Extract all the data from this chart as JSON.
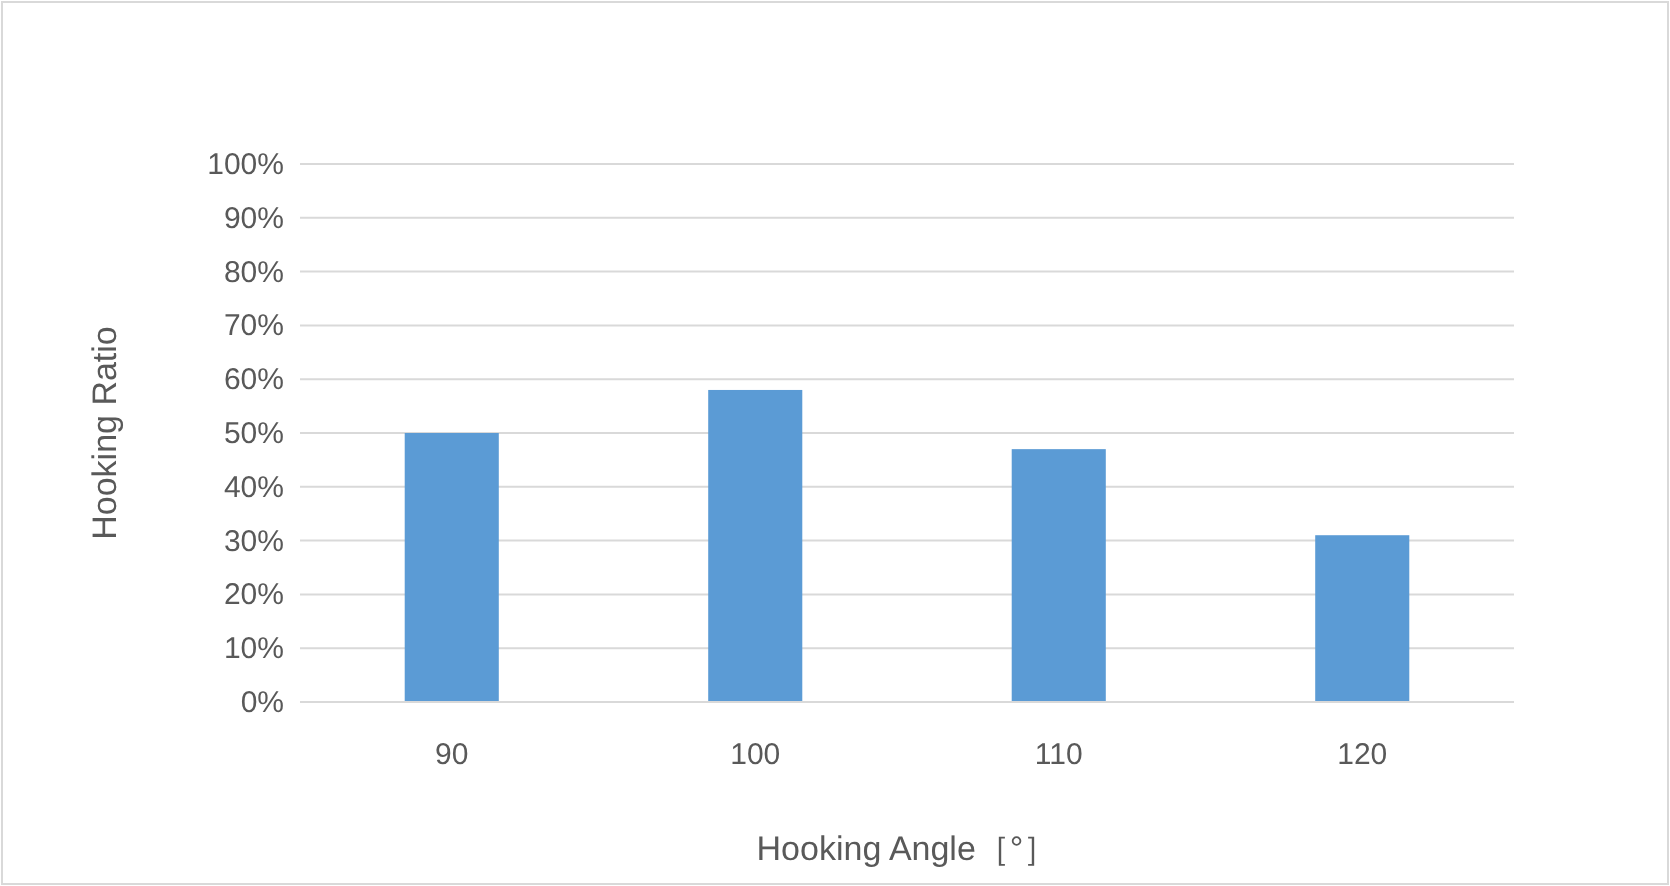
{
  "chart_data": {
    "type": "bar",
    "xlabel": "Hooking Angle［°］",
    "ylabel": "Hooking Ratio",
    "categories": [
      "90",
      "100",
      "110",
      "120"
    ],
    "values": [
      50,
      58,
      47,
      31
    ],
    "color": "#5b9bd5",
    "ylim": [
      0,
      100
    ],
    "yticks": [
      {
        "value": 0,
        "label": "0%"
      },
      {
        "value": 10,
        "label": "10%"
      },
      {
        "value": 20,
        "label": "20%"
      },
      {
        "value": 30,
        "label": "30%"
      },
      {
        "value": 40,
        "label": "40%"
      },
      {
        "value": 50,
        "label": "50%"
      },
      {
        "value": 60,
        "label": "60%"
      },
      {
        "value": 70,
        "label": "70%"
      },
      {
        "value": 80,
        "label": "80%"
      },
      {
        "value": 90,
        "label": "90%"
      },
      {
        "value": 100,
        "label": "100%"
      }
    ],
    "grid": "y"
  }
}
